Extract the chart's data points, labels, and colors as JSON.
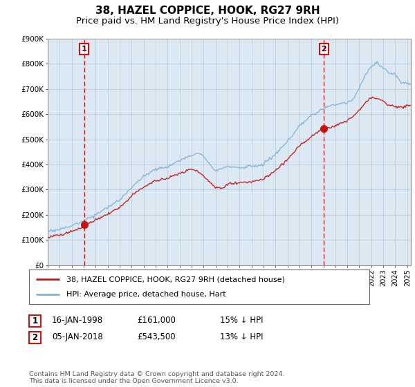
{
  "title": "38, HAZEL COPPICE, HOOK, RG27 9RH",
  "subtitle": "Price paid vs. HM Land Registry's House Price Index (HPI)",
  "title_fontsize": 11,
  "subtitle_fontsize": 9.5,
  "ylim": [
    0,
    900000
  ],
  "yticks": [
    0,
    100000,
    200000,
    300000,
    400000,
    500000,
    600000,
    700000,
    800000,
    900000
  ],
  "ytick_labels": [
    "£0",
    "£100K",
    "£200K",
    "£300K",
    "£400K",
    "£500K",
    "£600K",
    "£700K",
    "£800K",
    "£900K"
  ],
  "xlim_start": 1995.0,
  "xlim_end": 2025.3,
  "hpi_color": "#7eb4d8",
  "sale_color": "#cc1111",
  "vline_color": "#cc1111",
  "marker1_date": 1998.04,
  "marker1_value": 161000,
  "marker2_date": 2018.04,
  "marker2_value": 543500,
  "legend_sale": "38, HAZEL COPPICE, HOOK, RG27 9RH (detached house)",
  "legend_hpi": "HPI: Average price, detached house, Hart",
  "table_rows": [
    {
      "num": "1",
      "date": "16-JAN-1998",
      "price": "£161,000",
      "change": "15% ↓ HPI"
    },
    {
      "num": "2",
      "date": "05-JAN-2018",
      "price": "£543,500",
      "change": "13% ↓ HPI"
    }
  ],
  "footer": "Contains HM Land Registry data © Crown copyright and database right 2024.\nThis data is licensed under the Open Government Licence v3.0.",
  "background_color": "#ffffff",
  "plot_bg_color": "#dce8f2",
  "grid_color": "#b0c8dc",
  "annotation_box_color": "#cc1111"
}
